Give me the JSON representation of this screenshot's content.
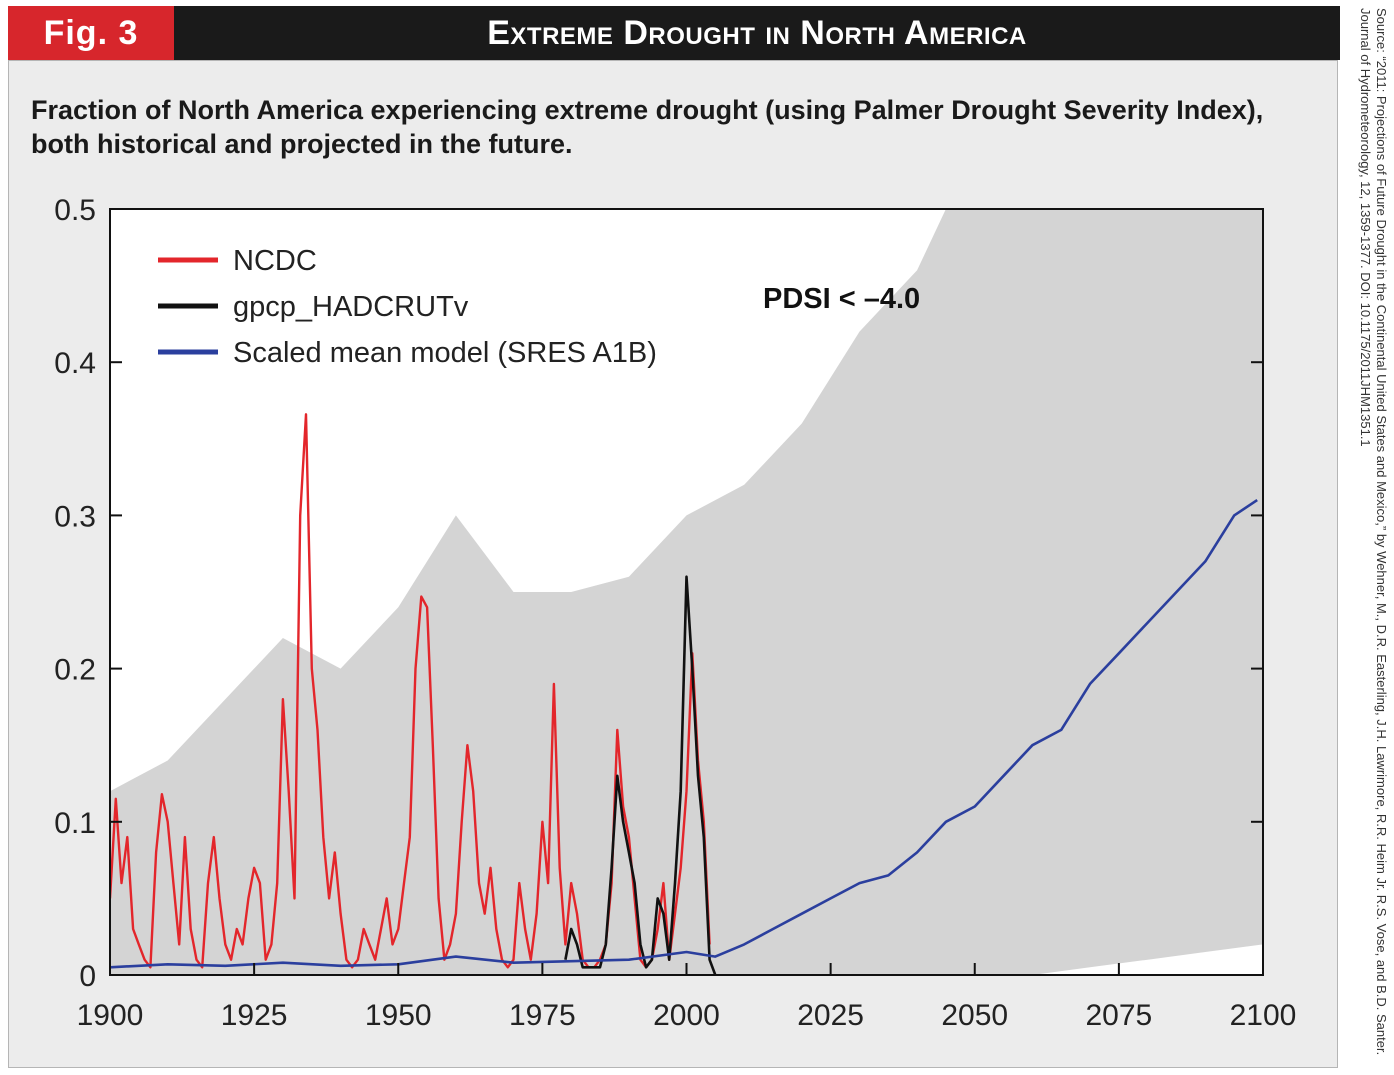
{
  "header": {
    "fig_label": "Fig. 3",
    "title": "Extreme Drought in North America"
  },
  "caption": "Fraction of North America experiencing extreme drought (using Palmer Drought Severity Index), both historical and projected in the future.",
  "source_note": "Source: “2011: Projections of Future Drought in the Continental United States and Mexico,” by Wehner, M., D.R. Easterling, J.H. Lawrimore, R.R. Heim Jr. R.S. Vose, and B.D. Santer. Journal of Hydrometeorology, 12, 1359-1377. DOI: 10.1175/2011JHM1351.1",
  "colors": {
    "header_bg": "#1a1a1a",
    "fig_label_bg": "#d7262c",
    "panel_bg": "#ececec",
    "plot_bg": "#ffffff",
    "ensemble_spread": "#d4d4d4",
    "ncdc": "#e3262b",
    "gpcp": "#111111",
    "model": "#2b3f9e"
  },
  "chart_data": {
    "type": "line",
    "title": "",
    "xlabel": "",
    "ylabel": "",
    "annotation": "PDSI < –4.0",
    "xlim": [
      1900,
      2100
    ],
    "ylim": [
      0,
      0.5
    ],
    "xticks": [
      "1900",
      "1925",
      "1950",
      "1975",
      "2000",
      "2025",
      "2050",
      "2075",
      "2100"
    ],
    "yticks": [
      "0",
      "0.1",
      "0.2",
      "0.3",
      "0.4",
      "0.5"
    ],
    "legend_position": "top-left",
    "grid": false,
    "series": [
      {
        "name": "NCDC",
        "color": "#e3262b",
        "x": [
          1900,
          1901,
          1902,
          1903,
          1904,
          1905,
          1906,
          1907,
          1908,
          1909,
          1910,
          1911,
          1912,
          1913,
          1914,
          1915,
          1916,
          1917,
          1918,
          1919,
          1920,
          1921,
          1922,
          1923,
          1924,
          1925,
          1926,
          1927,
          1928,
          1929,
          1930,
          1931,
          1932,
          1933,
          1934,
          1935,
          1936,
          1937,
          1938,
          1939,
          1940,
          1941,
          1942,
          1943,
          1944,
          1945,
          1946,
          1947,
          1948,
          1949,
          1950,
          1951,
          1952,
          1953,
          1954,
          1955,
          1956,
          1957,
          1958,
          1959,
          1960,
          1961,
          1962,
          1963,
          1964,
          1965,
          1966,
          1967,
          1968,
          1969,
          1970,
          1971,
          1972,
          1973,
          1974,
          1975,
          1976,
          1977,
          1978,
          1979,
          1980,
          1981,
          1982,
          1983,
          1984,
          1985,
          1986,
          1987,
          1988,
          1989,
          1990,
          1991,
          1992,
          1993,
          1994,
          1995,
          1996,
          1997,
          1998,
          1999,
          2000,
          2001,
          2002,
          2003,
          2004
        ],
        "y": [
          0.05,
          0.115,
          0.06,
          0.09,
          0.03,
          0.02,
          0.01,
          0.005,
          0.08,
          0.118,
          0.1,
          0.06,
          0.02,
          0.09,
          0.03,
          0.01,
          0.005,
          0.06,
          0.09,
          0.05,
          0.02,
          0.01,
          0.03,
          0.02,
          0.05,
          0.07,
          0.06,
          0.01,
          0.02,
          0.06,
          0.18,
          0.12,
          0.05,
          0.3,
          0.366,
          0.2,
          0.16,
          0.09,
          0.05,
          0.08,
          0.04,
          0.01,
          0.005,
          0.01,
          0.03,
          0.02,
          0.01,
          0.03,
          0.05,
          0.02,
          0.03,
          0.06,
          0.09,
          0.2,
          0.247,
          0.24,
          0.15,
          0.05,
          0.01,
          0.02,
          0.04,
          0.1,
          0.15,
          0.12,
          0.06,
          0.04,
          0.07,
          0.03,
          0.01,
          0.005,
          0.01,
          0.06,
          0.03,
          0.01,
          0.04,
          0.1,
          0.06,
          0.19,
          0.07,
          0.02,
          0.06,
          0.04,
          0.01,
          0.005,
          0.005,
          0.01,
          0.02,
          0.06,
          0.16,
          0.11,
          0.09,
          0.05,
          0.01,
          0.005,
          0.01,
          0.03,
          0.06,
          0.01,
          0.04,
          0.07,
          0.12,
          0.21,
          0.14,
          0.1,
          0.02
        ]
      },
      {
        "name": "gpcp_HADCRUTv",
        "color": "#111111",
        "x": [
          1979,
          1980,
          1981,
          1982,
          1983,
          1984,
          1985,
          1986,
          1987,
          1988,
          1989,
          1990,
          1991,
          1992,
          1993,
          1994,
          1995,
          1996,
          1997,
          1998,
          1999,
          2000,
          2001,
          2002,
          2003,
          2004,
          2005
        ],
        "y": [
          0.01,
          0.03,
          0.02,
          0.005,
          0.005,
          0.005,
          0.005,
          0.02,
          0.07,
          0.13,
          0.1,
          0.08,
          0.06,
          0.02,
          0.005,
          0.01,
          0.05,
          0.04,
          0.01,
          0.06,
          0.12,
          0.26,
          0.2,
          0.13,
          0.09,
          0.01,
          0.0
        ]
      },
      {
        "name": "Scaled mean model (SRES A1B)",
        "color": "#2b3f9e",
        "x": [
          1900,
          1910,
          1920,
          1930,
          1940,
          1950,
          1960,
          1970,
          1980,
          1990,
          2000,
          2005,
          2010,
          2015,
          2020,
          2025,
          2030,
          2035,
          2040,
          2045,
          2050,
          2055,
          2060,
          2065,
          2070,
          2075,
          2080,
          2085,
          2090,
          2095,
          2099
        ],
        "y": [
          0.005,
          0.007,
          0.006,
          0.008,
          0.006,
          0.007,
          0.012,
          0.008,
          0.009,
          0.01,
          0.015,
          0.012,
          0.02,
          0.03,
          0.04,
          0.05,
          0.06,
          0.065,
          0.08,
          0.1,
          0.11,
          0.13,
          0.15,
          0.16,
          0.19,
          0.21,
          0.23,
          0.25,
          0.27,
          0.3,
          0.31
        ]
      }
    ],
    "spread_band": {
      "x": [
        1900,
        1910,
        1920,
        1930,
        1940,
        1950,
        1960,
        1970,
        1980,
        1990,
        2000,
        2010,
        2020,
        2030,
        2040,
        2045,
        2050,
        2060,
        2070,
        2080,
        2090,
        2100
      ],
      "upper": [
        0.12,
        0.14,
        0.18,
        0.22,
        0.2,
        0.24,
        0.3,
        0.25,
        0.25,
        0.26,
        0.3,
        0.32,
        0.36,
        0.42,
        0.46,
        0.5,
        0.5,
        0.5,
        0.5,
        0.5,
        0.5,
        0.5
      ],
      "lower": [
        0,
        0,
        0,
        0,
        0,
        0,
        0,
        0,
        0,
        0,
        0,
        0,
        0,
        0,
        0,
        0,
        0,
        0,
        0.005,
        0.01,
        0.015,
        0.02
      ]
    }
  }
}
